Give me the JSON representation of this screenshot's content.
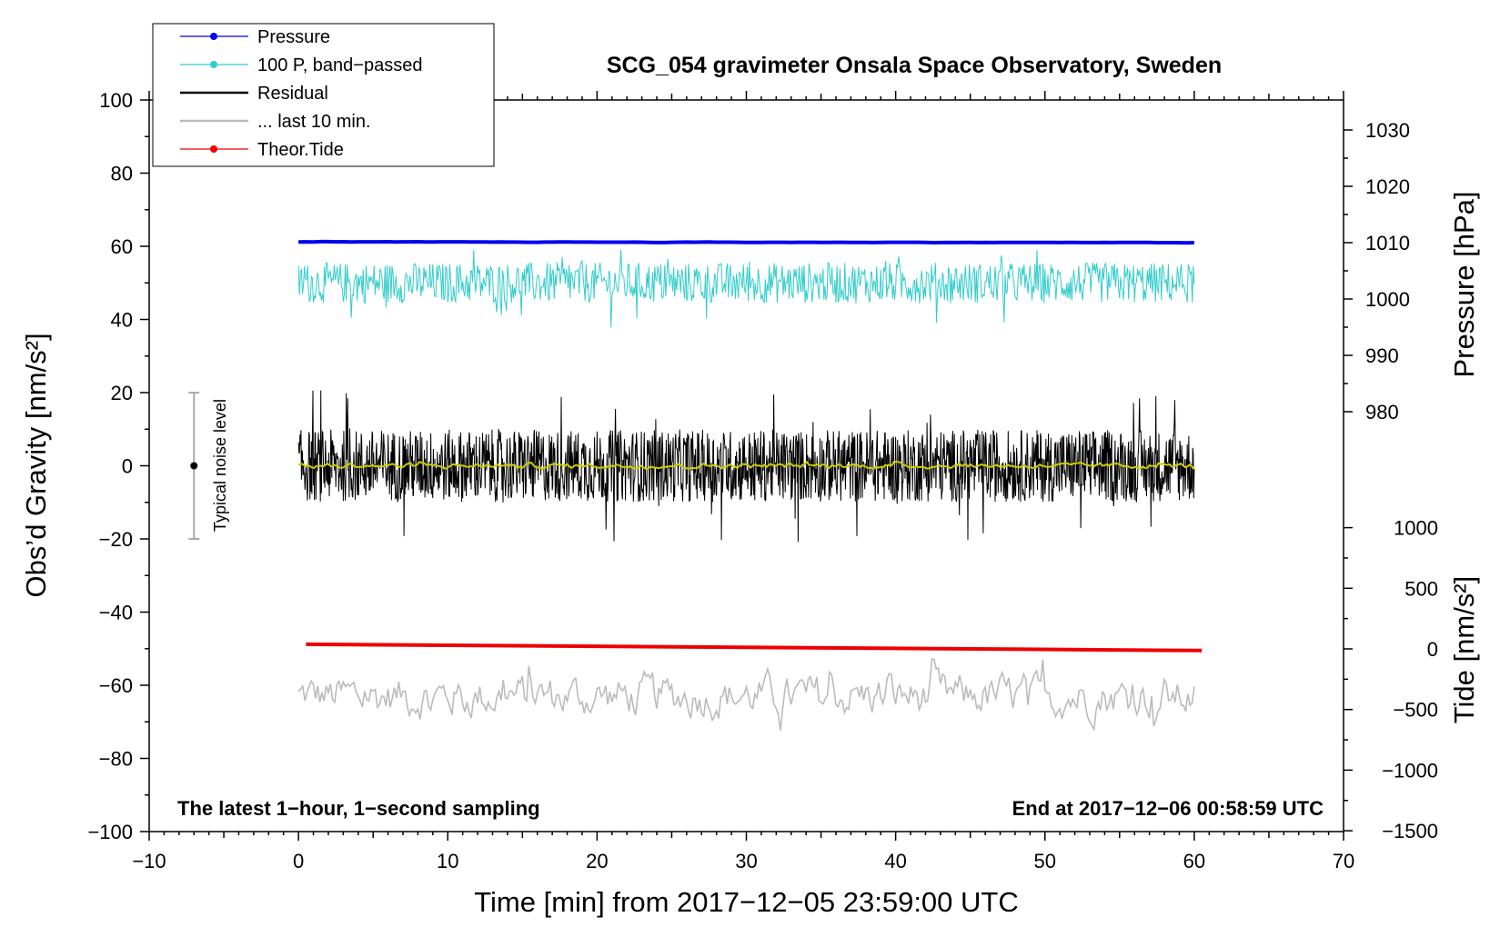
{
  "chart_data": {
    "type": "line",
    "title": "SCG_054 gravimeter Onsala Space Observatory, Sweden",
    "xlabel": "Time [min] from 2017−12−05 23:59:00 UTC",
    "ylabel_left": "Obs’d Gravity [nm/s²]",
    "ylabel_right_top": "Pressure [hPa]",
    "ylabel_right_bottom": "Tide [nm/s²]",
    "xlim": [
      -10,
      70
    ],
    "ylim_left": [
      -100,
      100
    ],
    "x_ticks": [
      "−10",
      "0",
      "10",
      "20",
      "30",
      "40",
      "50",
      "60",
      "70"
    ],
    "y_ticks_left": [
      "−100",
      "−80",
      "−60",
      "−40",
      "−20",
      "0",
      "20",
      "40",
      "60",
      "80",
      "100"
    ],
    "y_ticks_pressure": [
      "980",
      "990",
      "1000",
      "1010",
      "1020",
      "1030"
    ],
    "y_ticks_tide": [
      "−1500",
      "−1000",
      "−500",
      "0",
      "500",
      "1000"
    ],
    "annotation_left": "The latest 1−hour, 1−second sampling",
    "annotation_right": "End at 2017−12−06 00:58:59 UTC",
    "noise_label": "Typical noise level",
    "noise_bar": {
      "center": 0,
      "half_range": 20,
      "x": -7
    },
    "legend": [
      {
        "label": "Pressure",
        "color": "#0000ee",
        "marker": true
      },
      {
        "label": "100 P, band−passed",
        "color": "#33cccc",
        "marker": true
      },
      {
        "label": "Residual",
        "color": "#000000",
        "marker": false
      },
      {
        "label": "... last 10 min.",
        "color": "#bbbbbb",
        "marker": false
      },
      {
        "label": "Theor.Tide",
        "color": "#ee0000",
        "marker": true
      }
    ],
    "series": [
      {
        "name": "Pressure",
        "color": "#0000ee",
        "x_range": [
          0,
          60
        ],
        "start": 61.2,
        "end": 61.0,
        "noise": 0.1
      },
      {
        "name": "100 P, band−passed",
        "color": "#33cccc",
        "x_range": [
          0,
          60
        ],
        "mean": 50.0,
        "noise": 3.5,
        "min": 36,
        "max": 59
      },
      {
        "name": "Residual",
        "color": "#000000",
        "x_range": [
          0,
          60
        ],
        "mean": 0.0,
        "noise": 5.5,
        "min": -21,
        "max": 23
      },
      {
        "name": "Residual smoothed",
        "color": "#cccc00",
        "x_range": [
          0,
          60
        ],
        "mean": 0.0,
        "noise": 0.8
      },
      {
        "name": "... last 10 min.",
        "color": "#bbbbbb",
        "x_range": [
          0,
          60
        ],
        "mean": -63,
        "noise": 6.0,
        "min": -77,
        "max": -47
      },
      {
        "name": "Theor.Tide",
        "color": "#ee0000",
        "x_range": [
          0.5,
          60.5
        ],
        "start": -48.8,
        "end": -50.5
      }
    ]
  }
}
